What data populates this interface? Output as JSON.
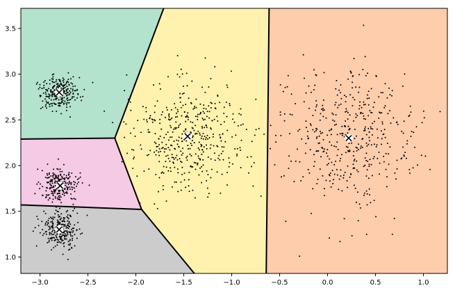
{
  "chart_data": {
    "type": "scatter",
    "title": "",
    "xlabel": "",
    "ylabel": "",
    "xlim": [
      -3.2,
      1.25
    ],
    "ylim": [
      0.82,
      3.72
    ],
    "x_ticks": [
      -3.0,
      -2.5,
      -2.0,
      -1.5,
      -1.0,
      -0.5,
      0.0,
      0.5,
      1.0
    ],
    "x_tick_labels": [
      "−3.0",
      "−2.5",
      "−2.0",
      "−1.5",
      "−1.0",
      "−0.5",
      "0.0",
      "0.5",
      "1.0"
    ],
    "y_ticks": [
      1.0,
      1.5,
      2.0,
      2.5,
      3.0,
      3.5
    ],
    "y_tick_labels": [
      "1.0",
      "1.5",
      "2.0",
      "2.5",
      "3.0",
      "3.5"
    ],
    "grid": false,
    "legend": "none",
    "centroids": [
      {
        "x": -2.8,
        "y": 2.8
      },
      {
        "x": -2.79,
        "y": 1.78
      },
      {
        "x": -2.8,
        "y": 1.3
      },
      {
        "x": -1.46,
        "y": 2.32
      },
      {
        "x": 0.22,
        "y": 2.3
      }
    ],
    "clusters": [
      {
        "cx": -2.8,
        "cy": 2.8,
        "sx": 0.1,
        "sy": 0.1,
        "n": 250
      },
      {
        "cx": -2.79,
        "cy": 1.78,
        "sx": 0.1,
        "sy": 0.1,
        "n": 250
      },
      {
        "cx": -2.8,
        "cy": 1.3,
        "sx": 0.1,
        "sy": 0.1,
        "n": 250
      },
      {
        "cx": -1.46,
        "cy": 2.32,
        "sx": 0.3,
        "sy": 0.3,
        "n": 450
      },
      {
        "cx": 0.22,
        "cy": 2.3,
        "sx": 0.36,
        "sy": 0.38,
        "n": 450
      }
    ],
    "regions": [
      {
        "name": "cluster-region-top-left",
        "color": "#b3e2cd",
        "polygon": [
          [
            -3.2,
            3.72
          ],
          [
            -1.71,
            3.72
          ],
          [
            -2.22,
            2.3
          ],
          [
            -3.2,
            2.29
          ]
        ]
      },
      {
        "name": "cluster-region-middle-left",
        "color": "#f4cae4",
        "polygon": [
          [
            -3.2,
            2.29
          ],
          [
            -2.22,
            2.3
          ],
          [
            -1.94,
            1.52
          ],
          [
            -3.2,
            1.57
          ]
        ]
      },
      {
        "name": "cluster-region-bottom-left",
        "color": "#cccccc",
        "polygon": [
          [
            -3.2,
            1.57
          ],
          [
            -1.94,
            1.52
          ],
          [
            -1.39,
            0.82
          ],
          [
            -3.2,
            0.82
          ]
        ]
      },
      {
        "name": "cluster-region-center",
        "color": "#fff2ae",
        "polygon": [
          [
            -1.71,
            3.72
          ],
          [
            -0.61,
            3.72
          ],
          [
            -0.64,
            0.82
          ],
          [
            -1.39,
            0.82
          ],
          [
            -1.94,
            1.52
          ],
          [
            -2.22,
            2.3
          ]
        ]
      },
      {
        "name": "cluster-region-right",
        "color": "#fdcdac",
        "polygon": [
          [
            -0.61,
            3.72
          ],
          [
            1.25,
            3.72
          ],
          [
            1.25,
            0.82
          ],
          [
            -0.64,
            0.82
          ]
        ]
      }
    ],
    "boundaries": [
      [
        [
          -1.71,
          3.72
        ],
        [
          -2.22,
          2.3
        ]
      ],
      [
        [
          -3.2,
          2.29
        ],
        [
          -2.22,
          2.3
        ]
      ],
      [
        [
          -2.22,
          2.3
        ],
        [
          -1.94,
          1.52
        ]
      ],
      [
        [
          -3.2,
          1.57
        ],
        [
          -1.94,
          1.52
        ]
      ],
      [
        [
          -1.94,
          1.52
        ],
        [
          -1.39,
          0.82
        ]
      ],
      [
        [
          -0.61,
          3.72
        ],
        [
          -0.64,
          0.82
        ]
      ]
    ]
  }
}
